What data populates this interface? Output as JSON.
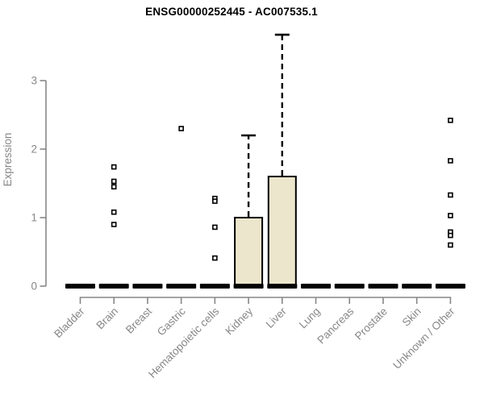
{
  "chart_data": {
    "type": "boxplot",
    "title": "ENSG00000252445 - AC007535.1",
    "ylabel": "Expression",
    "xlabel": "",
    "ylim": [
      0,
      3.75
    ],
    "yticks": [
      0,
      1,
      2,
      3
    ],
    "grid": false,
    "legend": false,
    "categories": [
      "Bladder",
      "Brain",
      "Breast",
      "Gastric",
      "Hematopoietic cells",
      "Kidney",
      "Liver",
      "Lung",
      "Pancreas",
      "Prostate",
      "Skin",
      "Unknown / Other"
    ],
    "boxes": [
      {
        "category": "Bladder",
        "median": 0,
        "q1": 0,
        "q3": 0,
        "whisker_low": 0,
        "whisker_high": 0,
        "outliers": []
      },
      {
        "category": "Brain",
        "median": 0,
        "q1": 0,
        "q3": 0,
        "whisker_low": 0,
        "whisker_high": 0,
        "outliers": [
          1.74,
          1.53,
          1.45,
          1.08,
          0.9
        ]
      },
      {
        "category": "Breast",
        "median": 0,
        "q1": 0,
        "q3": 0,
        "whisker_low": 0,
        "whisker_high": 0,
        "outliers": []
      },
      {
        "category": "Gastric",
        "median": 0,
        "q1": 0,
        "q3": 0,
        "whisker_low": 0,
        "whisker_high": 0,
        "outliers": [
          2.3
        ]
      },
      {
        "category": "Hematopoietic cells",
        "median": 0,
        "q1": 0,
        "q3": 0,
        "whisker_low": 0,
        "whisker_high": 0,
        "outliers": [
          1.28,
          1.24,
          0.86,
          0.41
        ]
      },
      {
        "category": "Kidney",
        "median": 0,
        "q1": 0,
        "q3": 1.0,
        "whisker_low": 0,
        "whisker_high": 2.2,
        "outliers": []
      },
      {
        "category": "Liver",
        "median": 0,
        "q1": 0,
        "q3": 1.6,
        "whisker_low": 0,
        "whisker_high": 3.67,
        "outliers": []
      },
      {
        "category": "Lung",
        "median": 0,
        "q1": 0,
        "q3": 0,
        "whisker_low": 0,
        "whisker_high": 0,
        "outliers": []
      },
      {
        "category": "Pancreas",
        "median": 0,
        "q1": 0,
        "q3": 0,
        "whisker_low": 0,
        "whisker_high": 0,
        "outliers": []
      },
      {
        "category": "Prostate",
        "median": 0,
        "q1": 0,
        "q3": 0,
        "whisker_low": 0,
        "whisker_high": 0,
        "outliers": []
      },
      {
        "category": "Skin",
        "median": 0,
        "q1": 0,
        "q3": 0,
        "whisker_low": 0,
        "whisker_high": 0,
        "outliers": []
      },
      {
        "category": "Unknown / Other",
        "median": 0,
        "q1": 0,
        "q3": 0,
        "whisker_low": 0,
        "whisker_high": 0,
        "outliers": [
          2.42,
          1.83,
          1.33,
          1.03,
          0.79,
          0.74,
          0.6
        ]
      }
    ],
    "colors": {
      "box_fill": "#ece6cd",
      "box_border": "#000000",
      "median": "#000000",
      "whisker": "#000000",
      "outlier_fill": "#ffffff",
      "outlier_border": "#000000",
      "axis": "#878787",
      "tick_text": "#878787",
      "title_text": "#000000",
      "background": "#ffffff"
    }
  }
}
